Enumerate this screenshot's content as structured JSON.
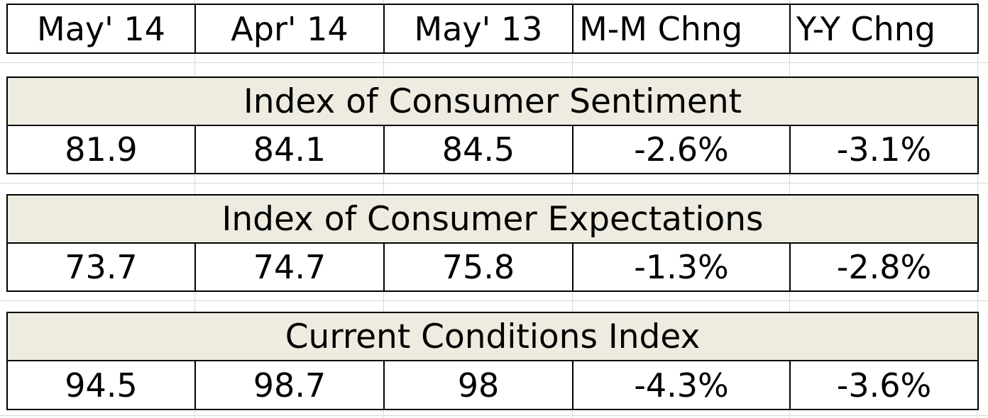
{
  "header": {
    "columns": [
      "May' 14",
      "Apr' 14",
      "May' 13",
      "M-M Chng",
      "Y-Y Chng"
    ]
  },
  "sections": [
    {
      "title": "Index of Consumer Sentiment",
      "values": [
        "81.9",
        "84.1",
        "84.5",
        "-2.6%",
        "-3.1%"
      ]
    },
    {
      "title": "Index of Consumer Expectations",
      "values": [
        "73.7",
        "74.7",
        "75.8",
        "-1.3%",
        "-2.8%"
      ]
    },
    {
      "title": "Current Conditions Index",
      "values": [
        "94.5",
        "98.7",
        "98",
        "-4.3%",
        "-3.6%"
      ]
    }
  ],
  "colors": {
    "section_background": "#eeebe0",
    "border": "#000000",
    "gridline": "#d8d8d8"
  }
}
